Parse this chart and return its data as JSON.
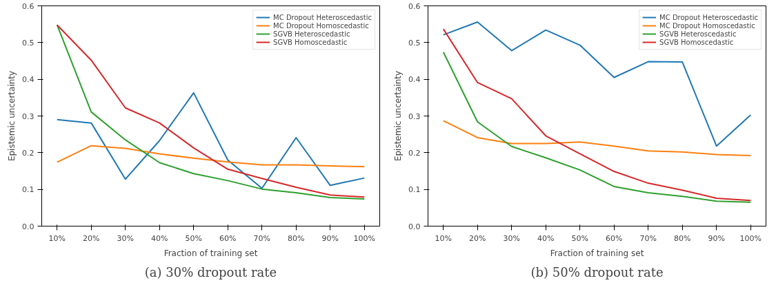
{
  "chart_data": [
    {
      "type": "line",
      "title": "(a) 30% dropout rate",
      "xlabel": "Fraction of training set",
      "ylabel": "Epistemic uncertainty",
      "categories": [
        "10%",
        "20%",
        "30%",
        "40%",
        "50%",
        "60%",
        "70%",
        "80%",
        "90%",
        "100%"
      ],
      "series": [
        {
          "name": "MC Dropout Heteroscedastic",
          "color": "#1f77b4",
          "values": [
            0.29,
            0.281,
            0.128,
            0.233,
            0.363,
            0.18,
            0.103,
            0.241,
            0.111,
            0.131
          ]
        },
        {
          "name": "MC Dropout Homoscedastic",
          "color": "#ff7f0e",
          "values": [
            0.174,
            0.219,
            0.212,
            0.197,
            0.185,
            0.175,
            0.167,
            0.167,
            0.164,
            0.162
          ]
        },
        {
          "name": "SGVB Heteroscedastic",
          "color": "#2ca02c",
          "values": [
            0.548,
            0.311,
            0.235,
            0.173,
            0.143,
            0.124,
            0.101,
            0.091,
            0.078,
            0.074
          ]
        },
        {
          "name": "SGVB Homoscedastic",
          "color": "#d62728",
          "values": [
            0.548,
            0.452,
            0.322,
            0.281,
            0.213,
            0.155,
            0.13,
            0.106,
            0.085,
            0.079
          ]
        }
      ],
      "ylim": [
        0,
        0.6
      ],
      "yticks": [
        {
          "value": 0,
          "label": "0.0"
        },
        0.1,
        0.2,
        0.3,
        0.4,
        0.5,
        0.6
      ],
      "grid": false,
      "legend": "top right",
      "marker": "none",
      "line_style": "solid"
    },
    {
      "type": "line",
      "title": "(b) 50% dropout rate",
      "xlabel": "Fraction of training set",
      "ylabel": "Epistemic uncertainty",
      "categories": [
        "10%",
        "20%",
        "30%",
        "40%",
        "50%",
        "60%",
        "70%",
        "80%",
        "90%",
        "100%"
      ],
      "series": [
        {
          "name": "MC Dropout Heteroscedastic",
          "color": "#1f77b4",
          "values": [
            0.521,
            0.556,
            0.478,
            0.534,
            0.493,
            0.405,
            0.448,
            0.447,
            0.218,
            0.303
          ]
        },
        {
          "name": "MC Dropout Homoscedastic",
          "color": "#ff7f0e",
          "values": [
            0.287,
            0.241,
            0.225,
            0.225,
            0.229,
            0.218,
            0.205,
            0.202,
            0.195,
            0.192
          ]
        },
        {
          "name": "SGVB Heteroscedastic",
          "color": "#2ca02c",
          "values": [
            0.474,
            0.284,
            0.217,
            0.186,
            0.153,
            0.108,
            0.091,
            0.081,
            0.068,
            0.065
          ]
        },
        {
          "name": "SGVB Homoscedastic",
          "color": "#d62728",
          "values": [
            0.537,
            0.391,
            0.347,
            0.246,
            0.197,
            0.149,
            0.117,
            0.098,
            0.076,
            0.07
          ]
        }
      ],
      "ylim": [
        0,
        0.6
      ],
      "yticks": [
        {
          "value": 0,
          "label": "0.0"
        },
        0.1,
        0.2,
        0.3,
        0.4,
        0.5,
        0.6
      ],
      "grid": false,
      "legend": "top right",
      "marker": "none",
      "line_style": "solid"
    }
  ]
}
